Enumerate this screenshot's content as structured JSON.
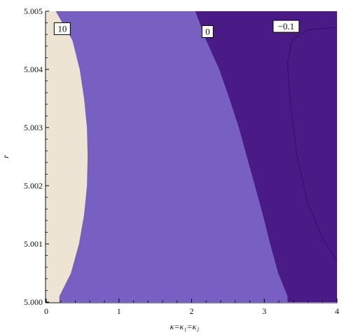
{
  "chart_data": {
    "type": "contour",
    "xlabel": "κ=κ₁=κ₂",
    "ylabel": "r",
    "xlim": [
      0,
      4
    ],
    "ylim": [
      5.0,
      5.005
    ],
    "x_ticks": [
      "0",
      "1",
      "2",
      "3",
      "4"
    ],
    "y_ticks": [
      "5.000",
      "5.001",
      "5.002",
      "5.003",
      "5.004",
      "5.005"
    ],
    "regions": [
      {
        "label": "10",
        "color": "#EEE4D4",
        "boundary_right": [
          {
            "r": 5.005,
            "kappa": 0.13
          },
          {
            "r": 5.0045,
            "kappa": 0.36
          },
          {
            "r": 5.004,
            "kappa": 0.46
          },
          {
            "r": 5.0035,
            "kappa": 0.52
          },
          {
            "r": 5.003,
            "kappa": 0.56
          },
          {
            "r": 5.0025,
            "kappa": 0.57
          },
          {
            "r": 5.002,
            "kappa": 0.56
          },
          {
            "r": 5.0015,
            "kappa": 0.52
          },
          {
            "r": 5.001,
            "kappa": 0.45
          },
          {
            "r": 5.0005,
            "kappa": 0.34
          },
          {
            "r": 5.0001,
            "kappa": 0.18
          }
        ]
      },
      {
        "label": "0",
        "color": "#7760C2",
        "boundary_right": [
          {
            "r": 5.005,
            "kappa": 2.05
          },
          {
            "r": 5.0045,
            "kappa": 2.2
          },
          {
            "r": 5.004,
            "kappa": 2.38
          },
          {
            "r": 5.0035,
            "kappa": 2.52
          },
          {
            "r": 5.003,
            "kappa": 2.65
          },
          {
            "r": 5.0025,
            "kappa": 2.76
          },
          {
            "r": 5.002,
            "kappa": 2.87
          },
          {
            "r": 5.0015,
            "kappa": 2.98
          },
          {
            "r": 5.001,
            "kappa": 3.08
          },
          {
            "r": 5.0005,
            "kappa": 3.19
          },
          {
            "r": 5.0001,
            "kappa": 3.32
          }
        ]
      },
      {
        "label": "-0.1",
        "color": "#4A1A86",
        "boundary_right": []
      }
    ],
    "contour_lines": [
      {
        "label": "−0.1",
        "points": [
          {
            "kappa": 4.0,
            "r": 5.00472
          },
          {
            "kappa": 3.6,
            "r": 5.00468
          },
          {
            "kappa": 3.38,
            "r": 5.0045
          },
          {
            "kappa": 3.32,
            "r": 5.0041
          },
          {
            "kappa": 3.36,
            "r": 5.0034
          },
          {
            "kappa": 3.45,
            "r": 5.0025
          },
          {
            "kappa": 3.6,
            "r": 5.0017
          },
          {
            "kappa": 3.8,
            "r": 5.0011
          },
          {
            "kappa": 4.0,
            "r": 5.0007
          }
        ]
      }
    ],
    "labels": [
      {
        "text": "10",
        "kappa": 0.22,
        "r": 5.0047
      },
      {
        "text": "0",
        "kappa": 2.22,
        "r": 5.00465
      },
      {
        "text": "−0.1",
        "kappa": 3.3,
        "r": 5.00474
      }
    ]
  }
}
